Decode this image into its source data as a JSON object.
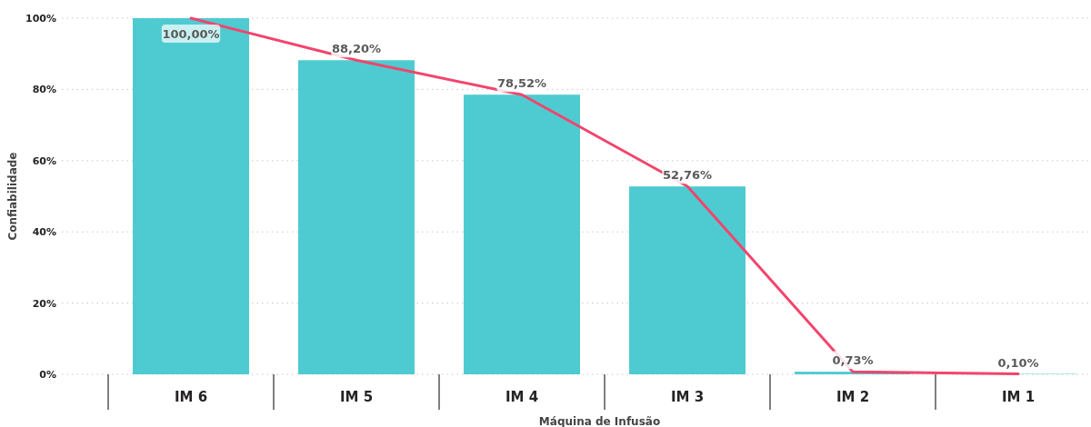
{
  "chart_data": {
    "type": "bar",
    "xlabel": "Máquina de Infusão",
    "ylabel": "Confiabilidade",
    "categories": [
      "IM 6",
      "IM 5",
      "IM 4",
      "IM 3",
      "IM 2",
      "IM 1"
    ],
    "series": [
      {
        "color": "#4ecbd1",
        "values": [
          100,
          88.2,
          78.52,
          52.76,
          0.73,
          0.1
        ],
        "value_labels": [
          "100,00%",
          "88,20%",
          "78,52%",
          "52,76%",
          "0,73%",
          "0,10%"
        ]
      },
      {
        "type": "line",
        "color": "#f2456c",
        "values": [
          100,
          88.2,
          78.5,
          52.8,
          0.7,
          0.1
        ]
      }
    ],
    "ylim": [
      0,
      100
    ],
    "yticks": [
      {
        "value": 0,
        "label": "0%"
      },
      {
        "value": 20,
        "label": "20%"
      },
      {
        "value": 40,
        "label": "40%"
      },
      {
        "value": 60,
        "label": "60%"
      },
      {
        "value": 80,
        "label": "80%"
      },
      {
        "value": 100,
        "label": "100%"
      }
    ],
    "grid": "y",
    "marker": "none",
    "line_style": "solid"
  }
}
